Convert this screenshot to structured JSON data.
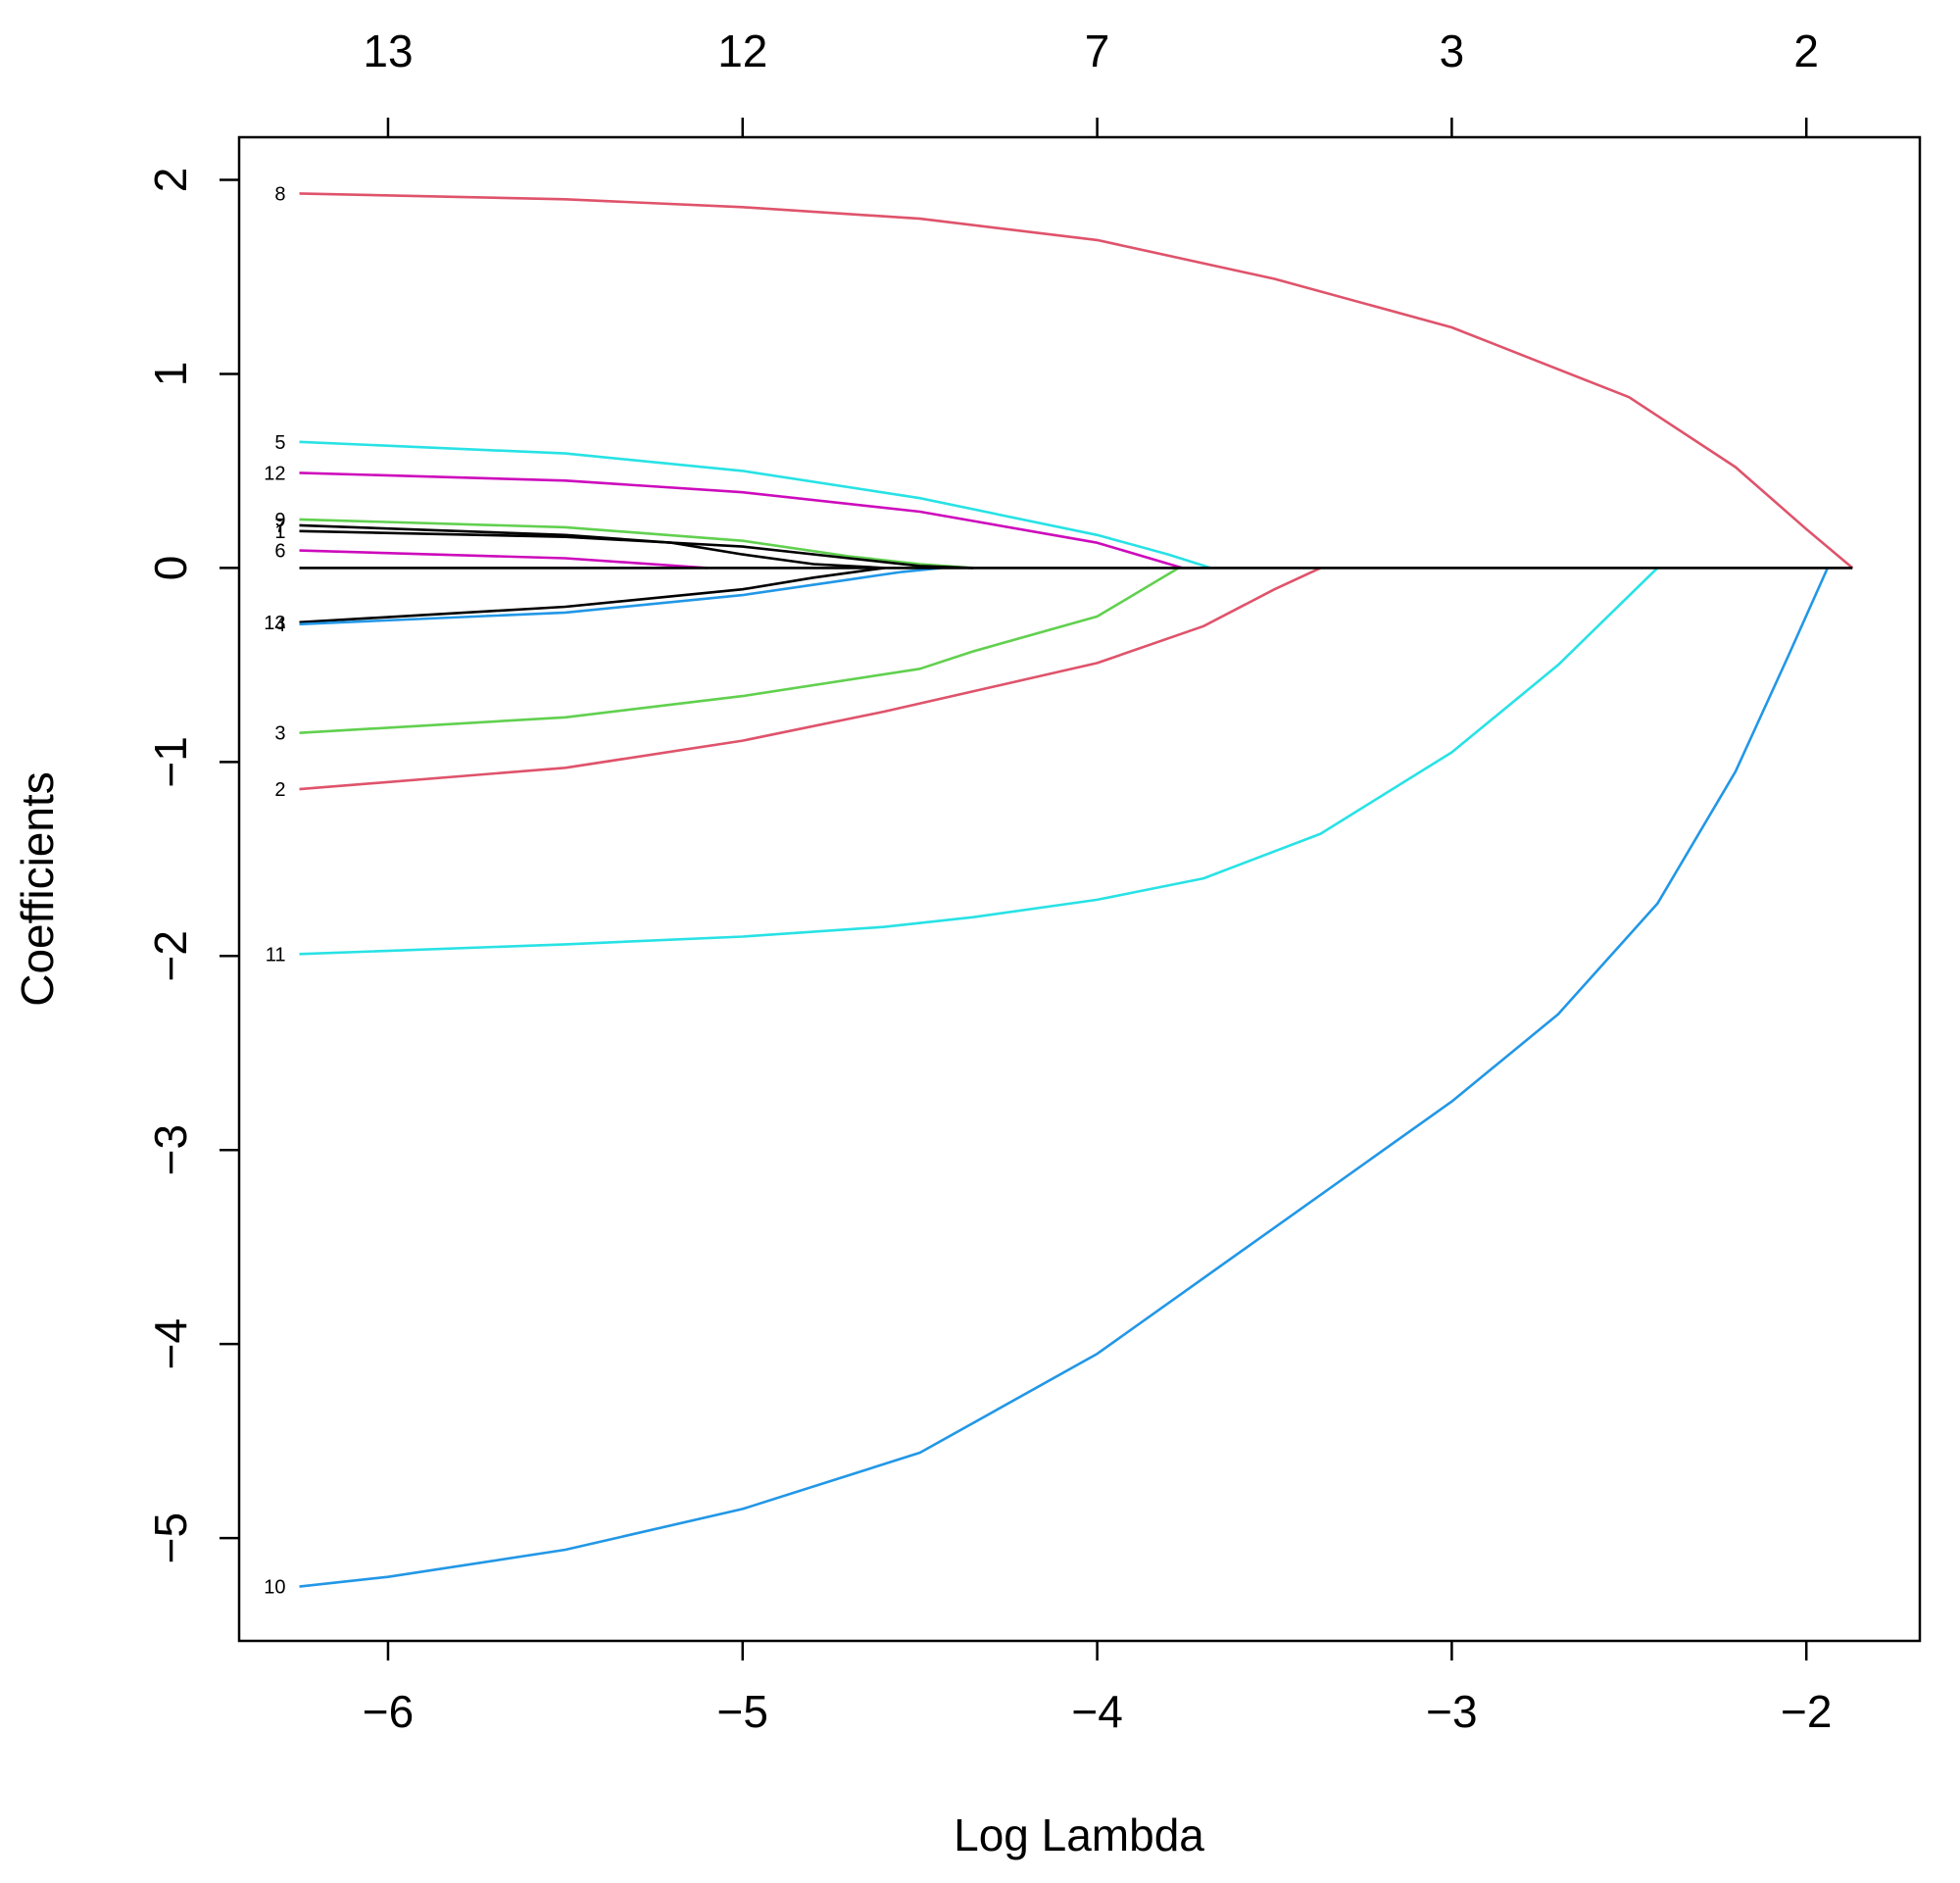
{
  "chart_data": {
    "type": "line",
    "title": "",
    "xlabel": "Log Lambda",
    "ylabel": "Coefficients",
    "xlim": [
      -6.42,
      -1.68
    ],
    "ylim": [
      -5.53,
      2.22
    ],
    "x_ticks": [
      -6,
      -5,
      -4,
      -3,
      -2
    ],
    "x_tick_labels": [
      "−6",
      "−5",
      "−4",
      "−3",
      "−2"
    ],
    "y_ticks": [
      -5,
      -4,
      -3,
      -2,
      -1,
      0,
      1,
      2
    ],
    "y_tick_labels": [
      "−5",
      "−4",
      "−3",
      "−2",
      "−1",
      "0",
      "1",
      "2"
    ],
    "top_axis_ticks": [
      -6,
      -5,
      -4,
      -3,
      -2
    ],
    "top_axis_labels": [
      "13",
      "12",
      "7",
      "3",
      "2"
    ],
    "grid": false,
    "legend": "none",
    "series": [
      {
        "label": "8",
        "color": "#DF536B",
        "points": [
          [
            -6.25,
            1.93
          ],
          [
            -5.5,
            1.9
          ],
          [
            -5.0,
            1.86
          ],
          [
            -4.5,
            1.8
          ],
          [
            -4.0,
            1.69
          ],
          [
            -3.5,
            1.49
          ],
          [
            -3.0,
            1.24
          ],
          [
            -2.5,
            0.88
          ],
          [
            -2.2,
            0.52
          ],
          [
            -2.0,
            0.2
          ],
          [
            -1.87,
            0.0
          ]
        ]
      },
      {
        "label": "5",
        "color": "#28E2E5",
        "points": [
          [
            -6.25,
            0.65
          ],
          [
            -5.5,
            0.59
          ],
          [
            -5.0,
            0.5
          ],
          [
            -4.5,
            0.36
          ],
          [
            -4.0,
            0.17
          ],
          [
            -3.8,
            0.07
          ],
          [
            -3.68,
            0.0
          ]
        ]
      },
      {
        "label": "12",
        "color": "#CD0BBC",
        "points": [
          [
            -6.25,
            0.49
          ],
          [
            -5.5,
            0.45
          ],
          [
            -5.0,
            0.39
          ],
          [
            -4.5,
            0.29
          ],
          [
            -4.0,
            0.13
          ],
          [
            -3.76,
            0.0
          ]
        ]
      },
      {
        "label": "9",
        "color": "#61D04F",
        "points": [
          [
            -6.25,
            0.25
          ],
          [
            -5.5,
            0.21
          ],
          [
            -5.0,
            0.14
          ],
          [
            -4.7,
            0.06
          ],
          [
            -4.5,
            0.02
          ],
          [
            -4.35,
            0.0
          ]
        ]
      },
      {
        "label": "7",
        "color": "#000000",
        "points": [
          [
            -6.25,
            0.22
          ],
          [
            -5.5,
            0.17
          ],
          [
            -5.2,
            0.13
          ],
          [
            -5.0,
            0.07
          ],
          [
            -4.8,
            0.02
          ],
          [
            -4.6,
            0.0
          ]
        ]
      },
      {
        "label": "1",
        "color": "#000000",
        "points": [
          [
            -6.25,
            0.19
          ],
          [
            -5.5,
            0.16
          ],
          [
            -5.0,
            0.11
          ],
          [
            -4.7,
            0.05
          ],
          [
            -4.5,
            0.01
          ],
          [
            -4.35,
            0.0
          ]
        ]
      },
      {
        "label": "6",
        "color": "#CD0BBC",
        "points": [
          [
            -6.25,
            0.09
          ],
          [
            -5.5,
            0.05
          ],
          [
            -5.1,
            0.0
          ]
        ]
      },
      {
        "label": "13",
        "color": "#000000",
        "points": [
          [
            -6.25,
            -0.28
          ],
          [
            -5.5,
            -0.2
          ],
          [
            -5.0,
            -0.11
          ],
          [
            -4.8,
            -0.05
          ],
          [
            -4.6,
            0.0
          ]
        ]
      },
      {
        "label": "4",
        "color": "#2297E6",
        "points": [
          [
            -6.25,
            -0.29
          ],
          [
            -5.5,
            -0.23
          ],
          [
            -5.0,
            -0.14
          ],
          [
            -4.7,
            -0.06
          ],
          [
            -4.55,
            -0.02
          ],
          [
            -4.44,
            0.0
          ]
        ]
      },
      {
        "label": "3",
        "color": "#61D04F",
        "points": [
          [
            -6.25,
            -0.85
          ],
          [
            -5.5,
            -0.77
          ],
          [
            -5.0,
            -0.66
          ],
          [
            -4.5,
            -0.52
          ],
          [
            -4.35,
            -0.43
          ],
          [
            -4.0,
            -0.25
          ],
          [
            -3.77,
            0.0
          ]
        ]
      },
      {
        "label": "2",
        "color": "#DF536B",
        "points": [
          [
            -6.25,
            -1.14
          ],
          [
            -5.5,
            -1.03
          ],
          [
            -5.0,
            -0.89
          ],
          [
            -4.6,
            -0.74
          ],
          [
            -4.0,
            -0.49
          ],
          [
            -3.7,
            -0.3
          ],
          [
            -3.5,
            -0.11
          ],
          [
            -3.37,
            0.0
          ]
        ]
      },
      {
        "label": "11",
        "color": "#28E2E5",
        "points": [
          [
            -6.25,
            -1.99
          ],
          [
            -5.5,
            -1.94
          ],
          [
            -5.0,
            -1.9
          ],
          [
            -4.6,
            -1.85
          ],
          [
            -4.35,
            -1.8
          ],
          [
            -4.0,
            -1.71
          ],
          [
            -3.7,
            -1.6
          ],
          [
            -3.37,
            -1.37
          ],
          [
            -3.0,
            -0.95
          ],
          [
            -2.7,
            -0.5
          ],
          [
            -2.42,
            0.0
          ]
        ]
      },
      {
        "label": "10",
        "color": "#2297E6",
        "points": [
          [
            -6.25,
            -5.25
          ],
          [
            -6.0,
            -5.2
          ],
          [
            -5.5,
            -5.06
          ],
          [
            -5.0,
            -4.85
          ],
          [
            -4.5,
            -4.56
          ],
          [
            -4.0,
            -4.05
          ],
          [
            -3.5,
            -3.4
          ],
          [
            -3.0,
            -2.75
          ],
          [
            -2.7,
            -2.3
          ],
          [
            -2.42,
            -1.73
          ],
          [
            -2.2,
            -1.05
          ],
          [
            -2.05,
            -0.45
          ],
          [
            -1.94,
            0.0
          ]
        ]
      }
    ],
    "zero_line": {
      "color": "#000000",
      "points": [
        [
          -6.25,
          0.0
        ],
        [
          -1.87,
          0.0
        ]
      ]
    }
  }
}
